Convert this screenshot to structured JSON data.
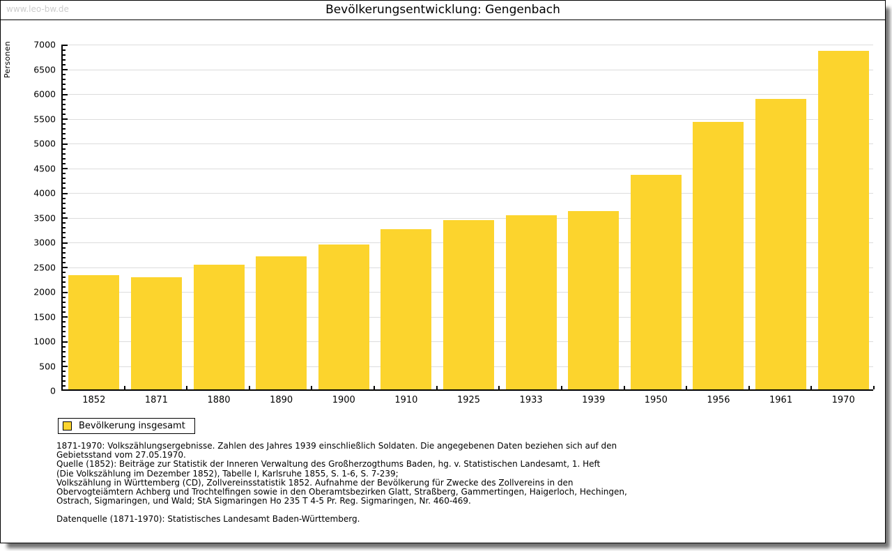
{
  "window": {
    "watermark": "www.leo-bw.de"
  },
  "chart_data": {
    "type": "bar",
    "title": "Bevölkerungsentwicklung: Gengenbach",
    "ylabel": "Personen",
    "xlabel": "",
    "ylim": [
      0,
      7000
    ],
    "ytick_step": 500,
    "y_minor_tick_step": 100,
    "grid": true,
    "legend": {
      "label": "Bevölkerung insgesamt",
      "position": "bottom-left"
    },
    "categories": [
      "1852",
      "1871",
      "1880",
      "1890",
      "1900",
      "1910",
      "1925",
      "1933",
      "1939",
      "1950",
      "1956",
      "1961",
      "1970"
    ],
    "series": [
      {
        "name": "Bevölkerung insgesamt",
        "color": "#FCD42D",
        "values": [
          2310,
          2270,
          2520,
          2690,
          2930,
          3245,
          3420,
          3520,
          3610,
          4335,
          5405,
          5875,
          6845
        ]
      }
    ]
  },
  "footnotes": {
    "lines": [
      "1871-1970: Volkszählungsergebnisse. Zahlen des Jahres 1939 einschließlich Soldaten. Die angegebenen Daten beziehen sich auf den",
      "Gebietsstand vom 27.05.1970.",
      "Quelle (1852): Beiträge zur Statistik der Inneren Verwaltung des Großherzogthums Baden, hg. v. Statistischen Landesamt, 1. Heft",
      "(Die Volkszählung im Dezember 1852), Tabelle I, Karlsruhe 1855, S. 1-6, S. 7-239;",
      "Volkszählung in Württemberg (CD), Zollvereinsstatistik 1852. Aufnahme der Bevölkerung für Zwecke des Zollvereins in den",
      "Obervogteiämtern Achberg und Trochtelfingen sowie in den Oberamtsbezirken Glatt, Straßberg, Gammertingen, Haigerloch, Hechingen,",
      "Ostrach, Sigmaringen, und Wald; StA Sigmaringen Ho 235 T 4-5 Pr. Reg. Sigmaringen, Nr. 460-469."
    ],
    "datasource": "Datenquelle (1871-1970): Statistisches Landesamt Baden-Württemberg."
  },
  "colors": {
    "bar": "#FCD42D",
    "grid": "#DCDCDC",
    "axis": "#000000",
    "watermark": "#CCCCCC",
    "background": "#FFFFFF"
  }
}
